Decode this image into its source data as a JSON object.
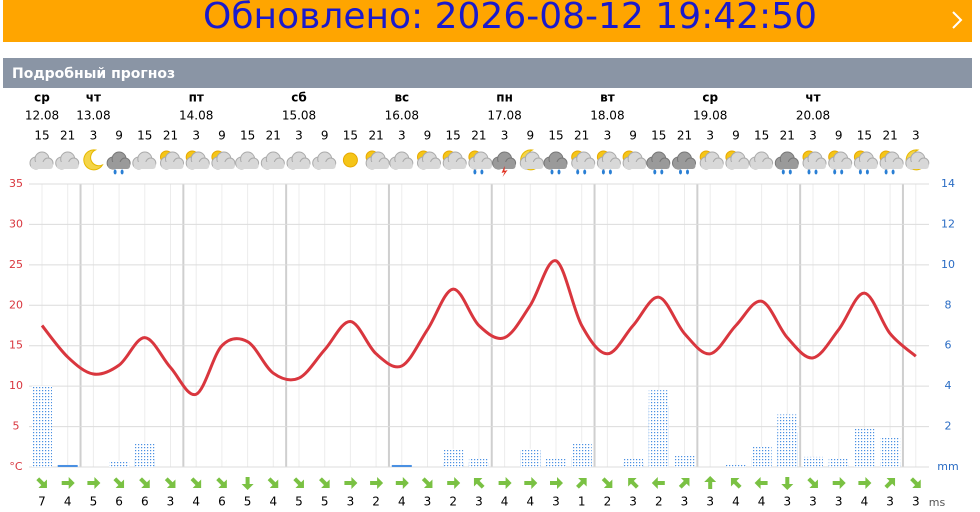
{
  "banner": {
    "title": "Обновлено: 2026-08-12 19:42:50"
  },
  "section_title": "Подробный прогноз",
  "chart_data": {
    "type": "line",
    "days": [
      {
        "weekday": "ср",
        "date": "12.08"
      },
      {
        "weekday": "чт",
        "date": "13.08"
      },
      {
        "weekday": "пт",
        "date": "14.08"
      },
      {
        "weekday": "сб",
        "date": "15.08"
      },
      {
        "weekday": "вс",
        "date": "16.08"
      },
      {
        "weekday": "пн",
        "date": "17.08"
      },
      {
        "weekday": "вт",
        "date": "18.08"
      },
      {
        "weekday": "ср",
        "date": "19.08"
      },
      {
        "weekday": "чт",
        "date": "20.08"
      }
    ],
    "categories": [
      15,
      21,
      3,
      9,
      15,
      21,
      3,
      9,
      15,
      21,
      3,
      9,
      15,
      21,
      3,
      9,
      15,
      21,
      3,
      9,
      15,
      21,
      3,
      9,
      15,
      21,
      3,
      9,
      15,
      21,
      3,
      9,
      15,
      21,
      3
    ],
    "icons": [
      "c",
      "c",
      "m",
      "r",
      "c",
      "pc",
      "pc",
      "pc",
      "c",
      "c",
      "c",
      "c",
      "s",
      "pc",
      "c",
      "pc",
      "pc",
      "pcr",
      "t",
      "pm",
      "r",
      "pcr",
      "pcr",
      "pc",
      "r",
      "r",
      "pc",
      "pc",
      "c",
      "r",
      "pcr",
      "pcr",
      "pcr",
      "pcr",
      "pm"
    ],
    "series": [
      {
        "name": "temperature",
        "color": "#d9363e",
        "values": [
          17.5,
          13.6,
          11.5,
          12.6,
          16,
          12.3,
          9,
          15,
          15.5,
          11.6,
          11,
          14.5,
          18,
          14,
          12.5,
          17,
          22,
          17.5,
          16,
          20,
          25.5,
          17.5,
          14,
          17.5,
          21,
          16.5,
          14,
          17.5,
          20.5,
          16,
          13.5,
          17,
          21.5,
          16.5,
          13.7
        ]
      },
      {
        "name": "precipitation",
        "color": "#4a90e2",
        "axis": "y2",
        "values": [
          0.5,
          0.1,
          0,
          0,
          0.4,
          0,
          0,
          0,
          0,
          0,
          0,
          0,
          0,
          0,
          0.1,
          0,
          0.2,
          0.2,
          0,
          0.8,
          0.3,
          0.5,
          0,
          0.2,
          3,
          0.3,
          0,
          0,
          0.5,
          1.7,
          0.2,
          0.1,
          0,
          0.2,
          0
        ]
      },
      {
        "name": "precipitation_max",
        "color": "#4a90e2",
        "axis": "y2",
        "values": [
          4,
          0,
          0,
          0.3,
          1.2,
          0,
          0,
          0,
          0,
          0,
          0,
          0,
          0,
          0,
          0,
          0,
          0.9,
          0.4,
          0,
          0.9,
          0.4,
          1.2,
          0,
          0.4,
          3.8,
          0.6,
          0,
          0.1,
          1,
          2.6,
          0.5,
          0.4,
          1.9,
          1.5,
          0
        ]
      }
    ],
    "wind_speed": [
      7,
      4,
      5,
      6,
      6,
      3,
      4,
      6,
      5,
      4,
      5,
      5,
      3,
      2,
      4,
      3,
      2,
      3,
      4,
      4,
      3,
      1,
      2,
      3,
      2,
      3,
      3,
      4,
      4,
      3,
      3,
      3,
      4,
      3,
      3
    ],
    "wind_direction": [
      45,
      0,
      0,
      45,
      45,
      45,
      45,
      45,
      90,
      45,
      45,
      45,
      0,
      0,
      0,
      45,
      0,
      225,
      0,
      0,
      0,
      315,
      45,
      225,
      180,
      315,
      270,
      225,
      180,
      90,
      45,
      0,
      0,
      315,
      45
    ],
    "wind_unit": "ms",
    "ylim": [
      0,
      35
    ],
    "yticks": [
      {
        "value": 0,
        "label": "°C"
      },
      5,
      10,
      15,
      20,
      25,
      30,
      35
    ],
    "y2lim": [
      0,
      14
    ],
    "y2ticks": [
      {
        "value": 0,
        "label": "mm"
      },
      2,
      4,
      6,
      8,
      10,
      12,
      14
    ],
    "grid": true
  }
}
